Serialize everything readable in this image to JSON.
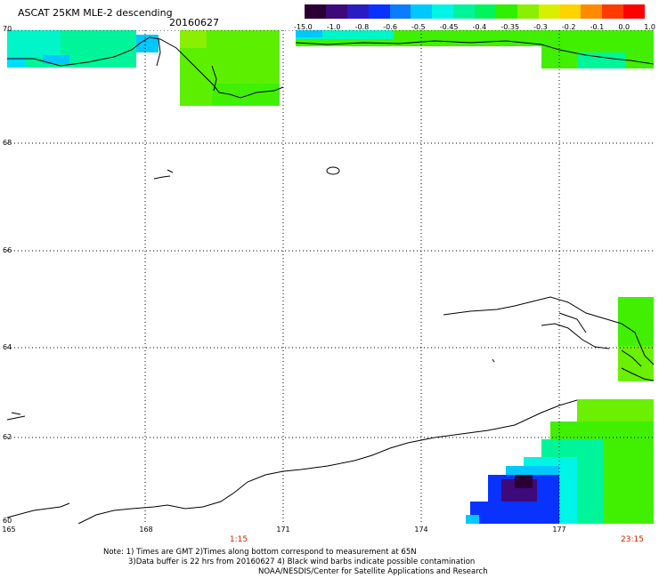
{
  "header": {
    "title": "ASCAT 25KM MLE-2 descending",
    "date": "20160627"
  },
  "colorbar": {
    "labels": [
      "-15.0",
      "-1.0",
      "-0.8",
      "-0.6",
      "-0.5",
      "-0.45",
      "-0.4",
      "-0.35",
      "-0.3",
      "-0.2",
      "-0.1",
      "0.0",
      "1.0"
    ],
    "colors": [
      "#2a0033",
      "#3d0a7a",
      "#2a1cc0",
      "#0a32ff",
      "#0a7cff",
      "#00c8ff",
      "#00f5e6",
      "#00f59a",
      "#00f55a",
      "#30f000",
      "#8aef00",
      "#d8f000",
      "#ffd200",
      "#ff8a00",
      "#ff3a00",
      "#ff0000"
    ]
  },
  "map": {
    "lat_labels": [
      "70",
      "68",
      "66",
      "64",
      "62",
      "60"
    ],
    "lon_labels": [
      "165",
      "168",
      "171",
      "174",
      "177"
    ],
    "times": {
      "left": "1:15",
      "right": "23:15"
    }
  },
  "notes": {
    "line1": "Note: 1) Times are GMT 2)Times along bottom correspond to measurement at 65N",
    "line2": "3)Data buffer is 22 hrs from 20160627 4) Black wind barbs indicate possible contamination",
    "line3": "NOAA/NESDIS/Center for Satellite Applications and Research"
  }
}
